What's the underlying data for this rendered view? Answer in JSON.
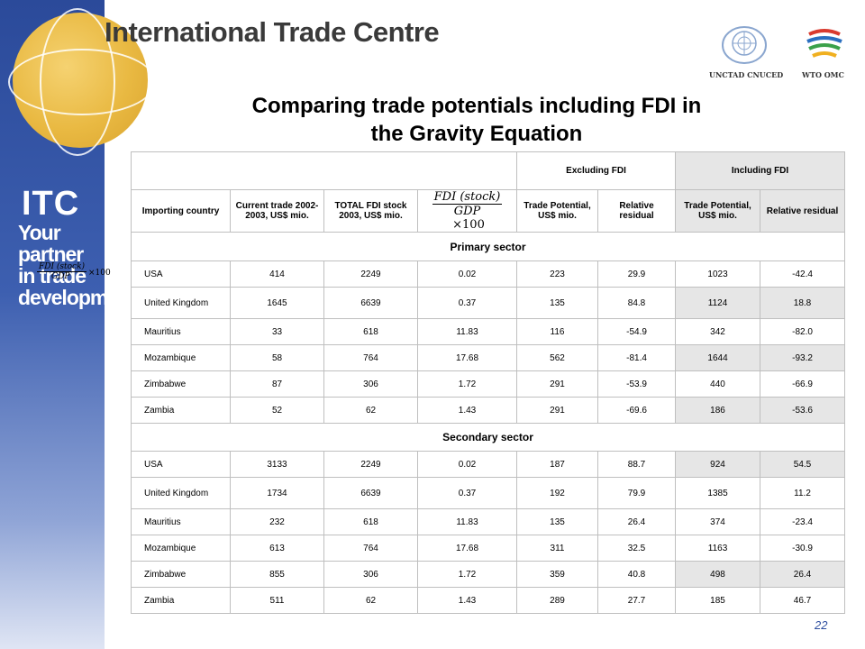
{
  "header": {
    "brand": "International Trade Centre",
    "mark": "ITC",
    "tagline": [
      "Your partner",
      "in trade",
      "development"
    ],
    "logos": {
      "un_label": "UNCTAD CNUCED",
      "wto_label": "WTO OMC"
    }
  },
  "slide": {
    "title_line1": "Comparing trade potentials including FDI in",
    "title_line2": "the Gravity Equation",
    "page_number": "22"
  },
  "formula": {
    "numerator": "FDI (stock)",
    "denominator": "GDP",
    "multiplier": "×100"
  },
  "table": {
    "group_headers": {
      "excluding": "Excluding FDI",
      "including": "Including FDI"
    },
    "columns": {
      "importing_country": "Importing country",
      "current_trade": "Current trade 2002-2003, US$ mio.",
      "total_fdi": "TOTAL FDI stock 2003, US$ mio.",
      "trade_potential_ex": "Trade Potential, US$ mio.",
      "relative_residual_ex": "Relative residual",
      "trade_potential_in": "Trade Potential, US$ mio.",
      "relative_residual_in": "Relative residual"
    },
    "sections": [
      {
        "name": "Primary sector",
        "rows": [
          {
            "country": "USA",
            "trade": "414",
            "fdi": "2249",
            "ratio": "0.02",
            "tp_ex": "223",
            "rr_ex": "29.9",
            "tp_in": "1023",
            "rr_in": "-42.4"
          },
          {
            "country": "United Kingdom",
            "trade": "1645",
            "fdi": "6639",
            "ratio": "0.37",
            "tp_ex": "135",
            "rr_ex": "84.8",
            "tp_in": "1124",
            "rr_in": "18.8"
          },
          {
            "country": "Mauritius",
            "trade": "33",
            "fdi": "618",
            "ratio": "11.83",
            "tp_ex": "116",
            "rr_ex": "-54.9",
            "tp_in": "342",
            "rr_in": "-82.0"
          },
          {
            "country": "Mozambique",
            "trade": "58",
            "fdi": "764",
            "ratio": "17.68",
            "tp_ex": "562",
            "rr_ex": "-81.4",
            "tp_in": "1644",
            "rr_in": "-93.2"
          },
          {
            "country": "Zimbabwe",
            "trade": "87",
            "fdi": "306",
            "ratio": "1.72",
            "tp_ex": "291",
            "rr_ex": "-53.9",
            "tp_in": "440",
            "rr_in": "-66.9"
          },
          {
            "country": "Zambia",
            "trade": "52",
            "fdi": "62",
            "ratio": "1.43",
            "tp_ex": "291",
            "rr_ex": "-69.6",
            "tp_in": "186",
            "rr_in": "-53.6"
          }
        ]
      },
      {
        "name": "Secondary sector",
        "rows": [
          {
            "country": "USA",
            "trade": "3133",
            "fdi": "2249",
            "ratio": "0.02",
            "tp_ex": "187",
            "rr_ex": "88.7",
            "tp_in": "924",
            "rr_in": "54.5"
          },
          {
            "country": "United Kingdom",
            "trade": "1734",
            "fdi": "6639",
            "ratio": "0.37",
            "tp_ex": "192",
            "rr_ex": "79.9",
            "tp_in": "1385",
            "rr_in": "11.2"
          },
          {
            "country": "Mauritius",
            "trade": "232",
            "fdi": "618",
            "ratio": "11.83",
            "tp_ex": "135",
            "rr_ex": "26.4",
            "tp_in": "374",
            "rr_in": "-23.4"
          },
          {
            "country": "Mozambique",
            "trade": "613",
            "fdi": "764",
            "ratio": "17.68",
            "tp_ex": "311",
            "rr_ex": "32.5",
            "tp_in": "1163",
            "rr_in": "-30.9"
          },
          {
            "country": "Zimbabwe",
            "trade": "855",
            "fdi": "306",
            "ratio": "1.72",
            "tp_ex": "359",
            "rr_ex": "40.8",
            "tp_in": "498",
            "rr_in": "26.4"
          },
          {
            "country": "Zambia",
            "trade": "511",
            "fdi": "62",
            "ratio": "1.43",
            "tp_ex": "289",
            "rr_ex": "27.7",
            "tp_in": "185",
            "rr_in": "46.7"
          }
        ]
      }
    ]
  }
}
